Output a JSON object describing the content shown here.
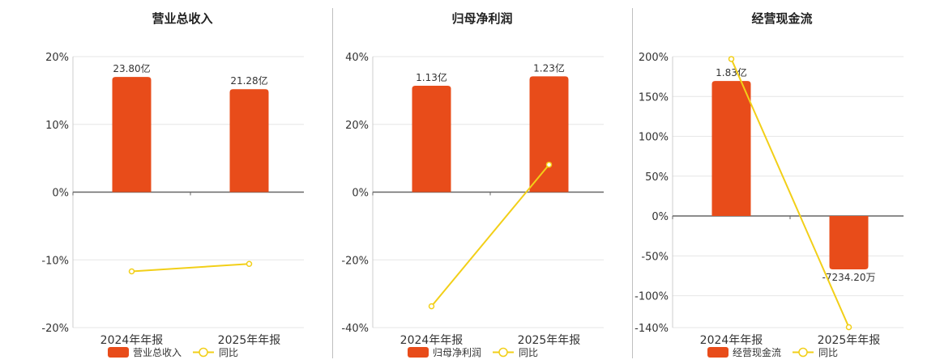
{
  "chart_data": [
    {
      "type": "bar",
      "title": "营业总收入",
      "categories": [
        "2024年年报",
        "2025年年报"
      ],
      "series": [
        {
          "name": "营业总收入",
          "type": "bar",
          "values": [
            23.8,
            21.28
          ],
          "labels": [
            "23.80亿",
            "21.28亿"
          ]
        },
        {
          "name": "同比",
          "type": "line",
          "values": [
            -11.7,
            -10.6
          ]
        }
      ],
      "ylim": [
        -20,
        20
      ],
      "yticks": [
        20,
        10,
        0,
        -10,
        -20
      ],
      "ytick_labels": [
        "20%",
        "10%",
        "0%",
        "-10%",
        "-20%"
      ],
      "bar_axis_max": 28.0,
      "grid": true,
      "legend": "bottom"
    },
    {
      "type": "bar",
      "title": "归母净利润",
      "categories": [
        "2024年年报",
        "2025年年报"
      ],
      "series": [
        {
          "name": "归母净利润",
          "type": "bar",
          "values": [
            1.13,
            1.23
          ],
          "labels": [
            "1.13亿",
            "1.23亿"
          ]
        },
        {
          "name": "同比",
          "type": "line",
          "values": [
            -33.7,
            8.1
          ]
        }
      ],
      "ylim": [
        -40,
        40
      ],
      "yticks": [
        40,
        20,
        0,
        -20,
        -40
      ],
      "ytick_labels": [
        "40%",
        "20%",
        "0%",
        "-20%",
        "-40%"
      ],
      "bar_axis_max": 1.44,
      "grid": true,
      "legend": "bottom"
    },
    {
      "type": "bar",
      "title": "经营现金流",
      "categories": [
        "2024年年报",
        "2025年年报"
      ],
      "series": [
        {
          "name": "经营现金流",
          "type": "bar",
          "values": [
            1.83,
            -0.72342
          ],
          "labels": [
            "1.83亿",
            "-7234.20万"
          ]
        },
        {
          "name": "同比",
          "type": "line",
          "values": [
            197.0,
            -139.5
          ]
        }
      ],
      "ylim": [
        -140,
        200
      ],
      "yticks": [
        200,
        150,
        100,
        50,
        0,
        -50,
        -100,
        -140
      ],
      "ytick_labels": [
        "200%",
        "150%",
        "100%",
        "50%",
        "0%",
        "-50%",
        "-100%",
        "-140%"
      ],
      "bar_axis_max": 2.16,
      "grid": true,
      "legend": "bottom"
    }
  ],
  "colors": {
    "bar": "#e84c1a",
    "line": "#f2cf18",
    "grid": "#e6e6e6",
    "axis": "#666666",
    "divider": "#bfbfbf"
  },
  "legend_icons": {
    "bar": "filled-rounded-rect",
    "line": "line-with-open-circle"
  }
}
